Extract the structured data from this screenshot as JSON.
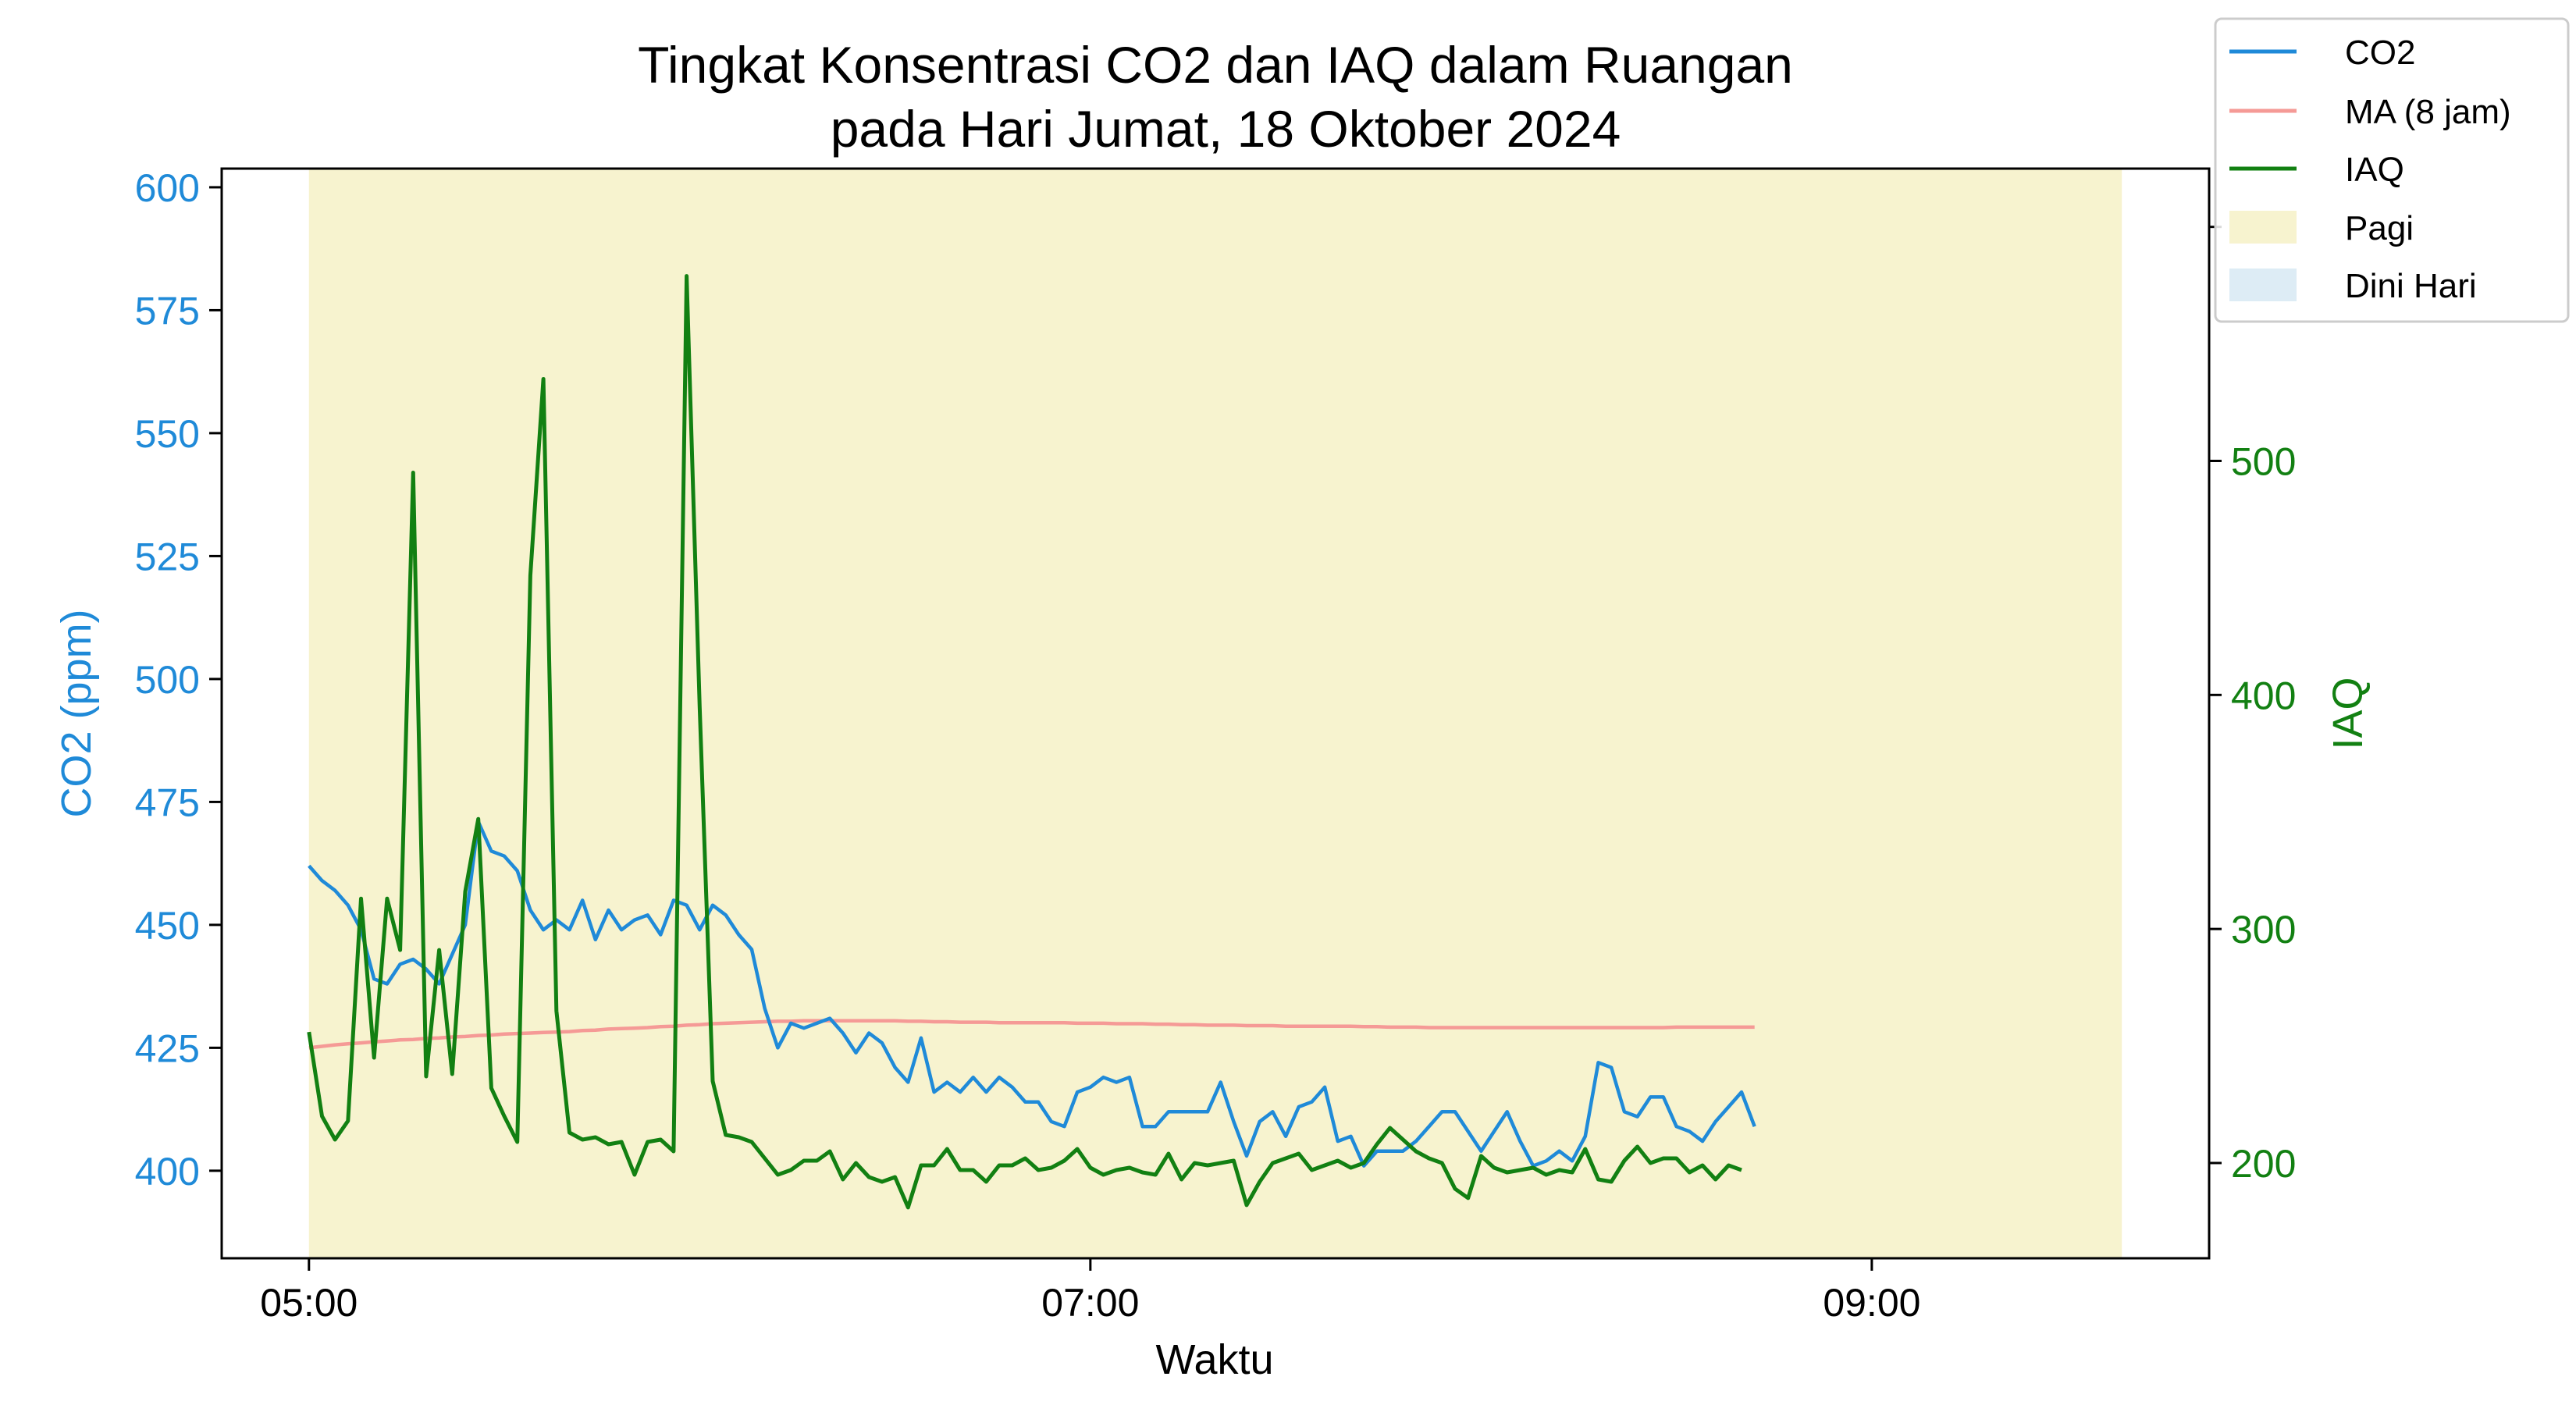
{
  "chart_data": {
    "type": "line",
    "title": [
      "Tingkat Konsentrasi CO2 dan IAQ dalam Ruangan",
      "pada Hari Jumat, 18 Oktober 2024"
    ],
    "xlabel": "Waktu",
    "ylabel_left": "CO2 (ppm)",
    "ylabel_right": "IAQ",
    "x_tick_labels": [
      "05:00",
      "07:00",
      "09:00"
    ],
    "x_tick_minutes": [
      300,
      420,
      540
    ],
    "xlim_minutes": [
      286.6,
      591.8
    ],
    "ylim_left": [
      382.2,
      603.8
    ],
    "y_ticks_left": [
      400,
      425,
      450,
      475,
      500,
      525,
      550,
      575,
      600
    ],
    "ylim_right": [
      159.3,
      624.9
    ],
    "y_ticks_right": [
      200,
      300,
      400,
      500,
      600
    ],
    "grid": false,
    "legend_position": "top-right",
    "shaded_regions": [
      {
        "name": "Pagi",
        "start_minute": 300,
        "end_minute": 578.4,
        "color": "#f7f3cf"
      },
      {
        "name": "Dini Hari",
        "start_minute": null,
        "end_minute": null,
        "color": "#ddecf5"
      }
    ],
    "series": [
      {
        "name": "CO2",
        "axis": "left",
        "color": "#1f8ad8",
        "start_minute": 300,
        "step_minutes": 2,
        "values": [
          462,
          459,
          457,
          454,
          449,
          439,
          438,
          442,
          443,
          441,
          438,
          444,
          450,
          471,
          465,
          464,
          461,
          453,
          449,
          451,
          449,
          455,
          447,
          453,
          449,
          451,
          452,
          448,
          455,
          454,
          449,
          454,
          452,
          448,
          445,
          433,
          425,
          430,
          429,
          430,
          431,
          428,
          424,
          428,
          426,
          421,
          418,
          427,
          416,
          418,
          416,
          419,
          416,
          419,
          417,
          414,
          414,
          410,
          409,
          416,
          417,
          419,
          418,
          419,
          409,
          409,
          412,
          412,
          412,
          412,
          418,
          410,
          403,
          410,
          412,
          407,
          413,
          414,
          417,
          406,
          407,
          401,
          404,
          404,
          404,
          406,
          409,
          412,
          412,
          408,
          404,
          408,
          412,
          406,
          401,
          402,
          404,
          402,
          407,
          422,
          421,
          412,
          411,
          415,
          415,
          409,
          408,
          406,
          410,
          413,
          416,
          409
        ]
      },
      {
        "name": "MA (8 jam)",
        "axis": "left",
        "color": "#f59a96",
        "start_minute": 300,
        "step_minutes": 2,
        "values": [
          425,
          425.3,
          425.6,
          425.8,
          426,
          426.2,
          426.4,
          426.6,
          426.7,
          426.9,
          427,
          427.2,
          427.3,
          427.5,
          427.6,
          427.8,
          427.9,
          428,
          428.1,
          428.2,
          428.3,
          428.5,
          428.6,
          428.8,
          428.9,
          429,
          429.1,
          429.3,
          429.4,
          429.6,
          429.7,
          429.9,
          430,
          430.1,
          430.2,
          430.3,
          430.4,
          430.4,
          430.5,
          430.5,
          430.5,
          430.5,
          430.5,
          430.5,
          430.5,
          430.5,
          430.4,
          430.4,
          430.3,
          430.3,
          430.2,
          430.2,
          430.2,
          430.1,
          430.1,
          430.1,
          430.1,
          430.1,
          430.1,
          430,
          430,
          430,
          429.9,
          429.9,
          429.9,
          429.8,
          429.8,
          429.7,
          429.7,
          429.6,
          429.6,
          429.6,
          429.5,
          429.5,
          429.5,
          429.4,
          429.4,
          429.4,
          429.4,
          429.4,
          429.4,
          429.3,
          429.3,
          429.2,
          429.2,
          429.2,
          429.1,
          429.1,
          429.1,
          429.1,
          429.1,
          429.1,
          429.1,
          429.1,
          429.1,
          429.1,
          429.1,
          429.1,
          429.1,
          429.1,
          429.1,
          429.1,
          429.1,
          429.1,
          429.1,
          429.2,
          429.2,
          429.2,
          429.2,
          429.2,
          429.2,
          429.2
        ]
      },
      {
        "name": "IAQ",
        "axis": "right",
        "color": "#128012",
        "start_minute": 300,
        "step_minutes": 2,
        "values": [
          256,
          220,
          210,
          218,
          313,
          245,
          313,
          291,
          495,
          237,
          291,
          238,
          316,
          347,
          232,
          220,
          209,
          451,
          535,
          265,
          213,
          210,
          211,
          208,
          209,
          195,
          209,
          210,
          205,
          579,
          395,
          235,
          212,
          211,
          209,
          202,
          195,
          197,
          201,
          201,
          205,
          193,
          200,
          194,
          192,
          194,
          181,
          199,
          199,
          206,
          197,
          197,
          192,
          199,
          199,
          202,
          197,
          198,
          201,
          206,
          198,
          195,
          197,
          198,
          196,
          195,
          204,
          193,
          200,
          199,
          200,
          201,
          182,
          192,
          200,
          202,
          204,
          197,
          199,
          201,
          198,
          200,
          208,
          215,
          210,
          205,
          202,
          200,
          189,
          185,
          203,
          198,
          196,
          197,
          198,
          195,
          197,
          196,
          206,
          193,
          192,
          201,
          207,
          200,
          202,
          202,
          196,
          199,
          193,
          199,
          197
        ]
      }
    ]
  }
}
